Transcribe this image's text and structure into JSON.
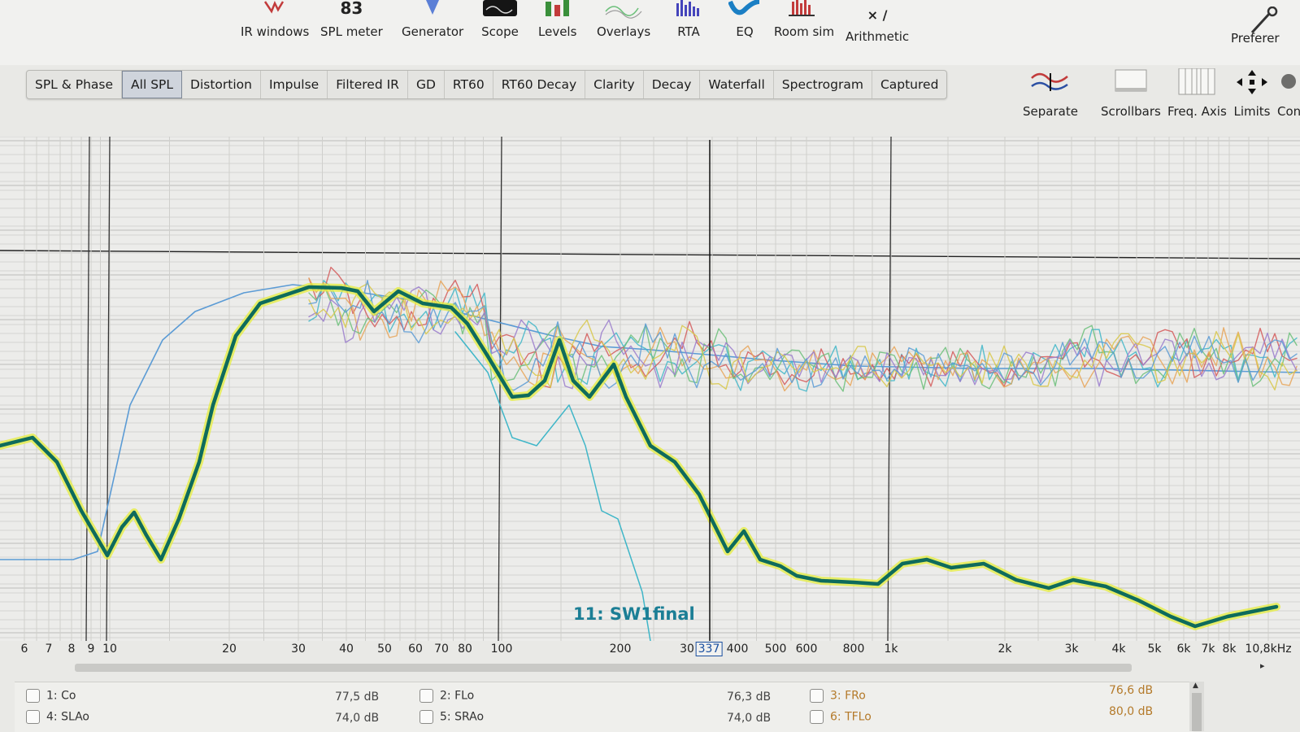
{
  "toolbar": {
    "items": [
      {
        "label": "IR windows",
        "icon": "ir-windows-icon",
        "value": ""
      },
      {
        "label": "SPL meter",
        "icon": "spl-meter-icon",
        "value": "83"
      },
      {
        "label": "Generator",
        "icon": "generator-icon",
        "value": ""
      },
      {
        "label": "Scope",
        "icon": "scope-icon",
        "value": ""
      },
      {
        "label": "Levels",
        "icon": "levels-icon",
        "value": ""
      },
      {
        "label": "Overlays",
        "icon": "overlays-icon",
        "value": ""
      },
      {
        "label": "RTA",
        "icon": "rta-icon",
        "value": ""
      },
      {
        "label": "EQ",
        "icon": "eq-icon",
        "value": ""
      },
      {
        "label": "Room sim",
        "icon": "room-sim-icon",
        "value": ""
      },
      {
        "label": "Arithmetic",
        "icon": "arithmetic-icon",
        "value": "× /"
      },
      {
        "label": "Preferer",
        "icon": "preferences-icon",
        "value": ""
      }
    ]
  },
  "tabs": [
    {
      "label": "SPL & Phase",
      "active": false
    },
    {
      "label": "All SPL",
      "active": true
    },
    {
      "label": "Distortion",
      "active": false
    },
    {
      "label": "Impulse",
      "active": false
    },
    {
      "label": "Filtered IR",
      "active": false
    },
    {
      "label": "GD",
      "active": false
    },
    {
      "label": "RT60",
      "active": false
    },
    {
      "label": "RT60 Decay",
      "active": false
    },
    {
      "label": "Clarity",
      "active": false
    },
    {
      "label": "Decay",
      "active": false
    },
    {
      "label": "Waterfall",
      "active": false
    },
    {
      "label": "Spectrogram",
      "active": false
    },
    {
      "label": "Captured",
      "active": false
    }
  ],
  "right_tools": [
    {
      "label": "Separate",
      "icon": "separate-icon"
    },
    {
      "label": "Scrollbars",
      "icon": "scrollbars-icon"
    },
    {
      "label": "Freq. Axis",
      "icon": "freq-axis-icon"
    },
    {
      "label": "Limits",
      "icon": "limits-icon"
    },
    {
      "label": "Con",
      "icon": "controls-icon"
    }
  ],
  "graph": {
    "active_trace_label": "11: SW1final",
    "cursor_freq": "337",
    "colors": {
      "active": "#0e6b5c",
      "active_glow": "#e6ee3c",
      "blue": "#5b9bd5",
      "cyan": "#3fb6c8",
      "red": "#d45a5a",
      "orange": "#e8a458",
      "green": "#6cc07a",
      "purple": "#9a7ccc",
      "yellow": "#d8c84a"
    },
    "freq_ticks": [
      "6",
      "7",
      "8",
      "9",
      "10",
      "20",
      "30",
      "40",
      "50",
      "60",
      "70",
      "80",
      "100",
      "200",
      "30",
      "400",
      "500",
      "600",
      "800",
      "1k",
      "2k",
      "3k",
      "4k",
      "5k",
      "6k",
      "7k",
      "8k",
      "10,8kHz"
    ]
  },
  "legend": {
    "items": [
      {
        "label": "1: Co",
        "value": "77,5 dB"
      },
      {
        "label": "2: FLo",
        "value": "76,3 dB"
      },
      {
        "label": "3: FRo",
        "value": "76,6 dB"
      },
      {
        "label": "4: SLAo",
        "value": "74,0 dB"
      },
      {
        "label": "5: SRAo",
        "value": "74,0 dB"
      },
      {
        "label": "6: TFLo",
        "value": "80,0 dB"
      }
    ]
  }
}
